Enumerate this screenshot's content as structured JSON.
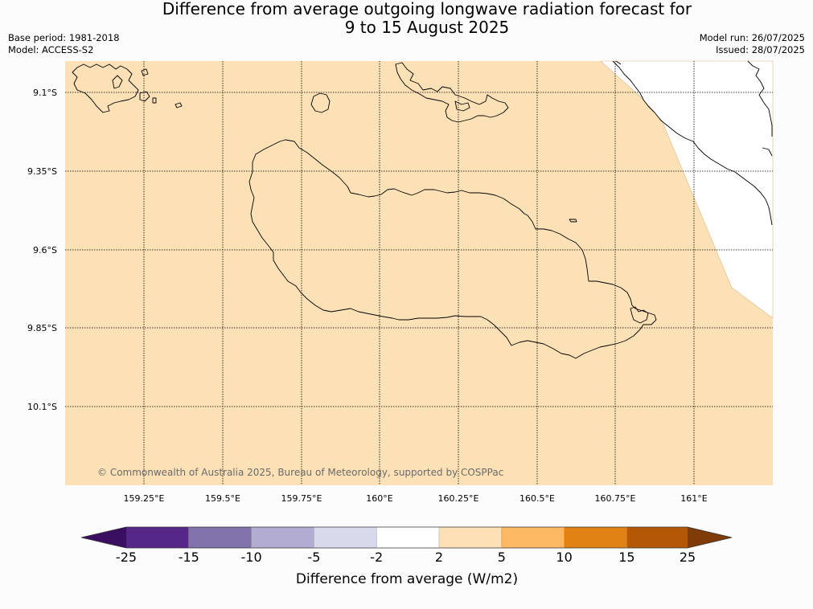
{
  "title_line1": "Difference from average outgoing longwave radiation forecast for",
  "title_line2": "9 to 15 August 2025",
  "meta_left": {
    "base_period": "Base period: 1981-2018",
    "model": "Model: ACCESS-S2"
  },
  "meta_right": {
    "model_run": "Model run: 26/07/2025",
    "issued": "Issued: 28/07/2025"
  },
  "map": {
    "lat_labels": [
      "9.1°S",
      "9.35°S",
      "9.6°S",
      "9.85°S",
      "10.1°S"
    ],
    "lon_labels": [
      "159.25°E",
      "159.5°E",
      "159.75°E",
      "160°E",
      "160.25°E",
      "160.5°E",
      "160.75°E",
      "161°E"
    ],
    "fill_color": "#fce0b6",
    "nodata_color": "#ffffff",
    "copyright": "© Commonwealth of Australia 2025, Bureau of Meteorology, supported by COSPPac"
  },
  "colorbar": {
    "label": "Difference from average (W/m2)",
    "ticks": [
      "-25",
      "-15",
      "-10",
      "-5",
      "-2",
      "2",
      "5",
      "10",
      "15",
      "25"
    ],
    "colors": [
      "#3a0f62",
      "#542788",
      "#8073ac",
      "#b2abd2",
      "#d8daeb",
      "#ffffff",
      "#fee0b6",
      "#fdb863",
      "#e08214",
      "#b35806",
      "#7f3b08"
    ]
  }
}
